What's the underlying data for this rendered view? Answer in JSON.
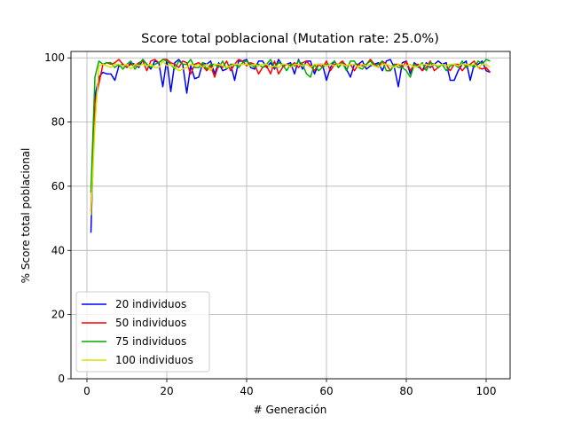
{
  "chart_data": {
    "type": "line",
    "title": "Score total poblacional (Mutation rate: 25.0%)",
    "xlabel": "# Generación",
    "ylabel": "% Score total poblacional",
    "xlim": [
      -4,
      106
    ],
    "ylim": [
      0,
      102
    ],
    "xticks": [
      0,
      20,
      40,
      60,
      80,
      100
    ],
    "yticks": [
      0,
      20,
      40,
      60,
      80,
      100
    ],
    "grid": true,
    "legend_position": "lower-left",
    "series": [
      {
        "name": "20 individuos",
        "color": "#0000ff",
        "x_start": 1,
        "values": [
          45.5,
          88,
          94,
          95.5,
          95,
          95,
          93,
          97.5,
          98,
          97,
          98.5,
          98,
          97,
          99.5,
          98,
          96.5,
          99,
          98.5,
          91,
          99.5,
          89.5,
          98.5,
          99.5,
          98,
          89,
          97.5,
          93.5,
          94,
          98.5,
          98,
          99,
          95,
          98.5,
          96,
          96.5,
          98,
          93,
          99,
          99,
          99.5,
          97,
          96.5,
          99,
          99,
          97,
          98.5,
          96.5,
          99.5,
          97.5,
          98,
          98.5,
          95,
          99.5,
          96.5,
          99,
          99,
          95,
          98,
          98,
          93,
          97,
          99,
          97,
          98.5,
          96.5,
          94,
          98,
          98,
          99,
          96.5,
          97.5,
          98,
          98.5,
          96,
          99,
          99.5,
          97,
          91,
          98.5,
          99,
          95,
          98.5,
          97.5,
          96,
          98.5,
          97,
          98,
          99,
          98,
          98.5,
          93,
          93,
          96,
          98,
          99,
          93,
          98,
          98,
          99,
          96,
          95.5
        ]
      },
      {
        "name": "50 individuos",
        "color": "#ff0000",
        "x_start": 1,
        "values": [
          52,
          86,
          92,
          98,
          98.5,
          98,
          98.5,
          99.5,
          98,
          97,
          98,
          97.5,
          98.5,
          99,
          96,
          99,
          99.5,
          98.5,
          99.5,
          99.5,
          98.5,
          98,
          97,
          99,
          98.5,
          95,
          98,
          98.5,
          97.5,
          96,
          97.5,
          94,
          98,
          97,
          99,
          96,
          98,
          99.5,
          99,
          97.5,
          98.5,
          98,
          95,
          97,
          97.5,
          95,
          99,
          95,
          97,
          98,
          97.5,
          98.5,
          97,
          98.5,
          99,
          97.5,
          96,
          98,
          97,
          99,
          96,
          98,
          98,
          99,
          97.5,
          98,
          96,
          98,
          97.5,
          98,
          99.5,
          98,
          97,
          99,
          98,
          96,
          98,
          98,
          97,
          99,
          96,
          98,
          98,
          96,
          97,
          99,
          96,
          97,
          98,
          97.5,
          96,
          98,
          98,
          96,
          97.5,
          98,
          99,
          97,
          96.5,
          97,
          95.5
        ]
      },
      {
        "name": "75 individuos",
        "color": "#00aa00",
        "x_start": 1,
        "values": [
          58,
          94,
          99,
          98,
          98.5,
          98.5,
          97,
          98,
          96.5,
          98,
          99,
          96.5,
          98,
          99.5,
          98,
          97,
          98,
          98.5,
          99.5,
          99,
          98,
          96.5,
          99,
          98,
          98,
          99.5,
          97,
          97,
          98.5,
          96.5,
          98,
          98,
          97,
          99,
          96.5,
          98,
          98,
          97,
          98.5,
          99,
          98,
          97,
          98,
          97,
          98,
          99.5,
          97,
          98.5,
          98,
          96,
          98,
          97.5,
          99,
          98,
          95,
          94,
          98,
          96,
          97,
          98,
          98,
          99,
          97,
          98.5,
          96,
          99,
          99,
          97,
          96.5,
          98,
          99,
          97.5,
          98,
          99,
          96,
          96,
          98,
          97,
          97,
          96,
          94,
          98,
          97,
          98.5,
          96,
          98.5,
          98,
          97,
          98,
          96,
          97.5,
          98,
          97,
          99,
          97,
          98,
          97,
          99,
          98,
          99.5,
          99
        ]
      },
      {
        "name": "100 individuos",
        "color": "#dddd00",
        "x_start": 1,
        "values": [
          51,
          79,
          97.5,
          98,
          97.5,
          97,
          98,
          98,
          97.5,
          98,
          96.5,
          98,
          97.5,
          98,
          97.5,
          98,
          97,
          97,
          99,
          97.5,
          98,
          97,
          96,
          96.5,
          97,
          98,
          97.5,
          98,
          97,
          98,
          96,
          98,
          98,
          97.5,
          97,
          97.5,
          98,
          98,
          98,
          98,
          97.5,
          98,
          97.5,
          98,
          98,
          97,
          97.5,
          97,
          98,
          98,
          97,
          98,
          98,
          97.5,
          98,
          97,
          98,
          98,
          98,
          97.5,
          98,
          97.5,
          98,
          98,
          97.5,
          98,
          98,
          97,
          98,
          97.5,
          98,
          97.5,
          97,
          98,
          98,
          97.5,
          97,
          98,
          98,
          97.5,
          98,
          97,
          97.5,
          98,
          98,
          97.5,
          98,
          97.5,
          98,
          97.5,
          98,
          98,
          97.5,
          98,
          98,
          97.5,
          98,
          97,
          98,
          98,
          97
        ]
      }
    ]
  }
}
